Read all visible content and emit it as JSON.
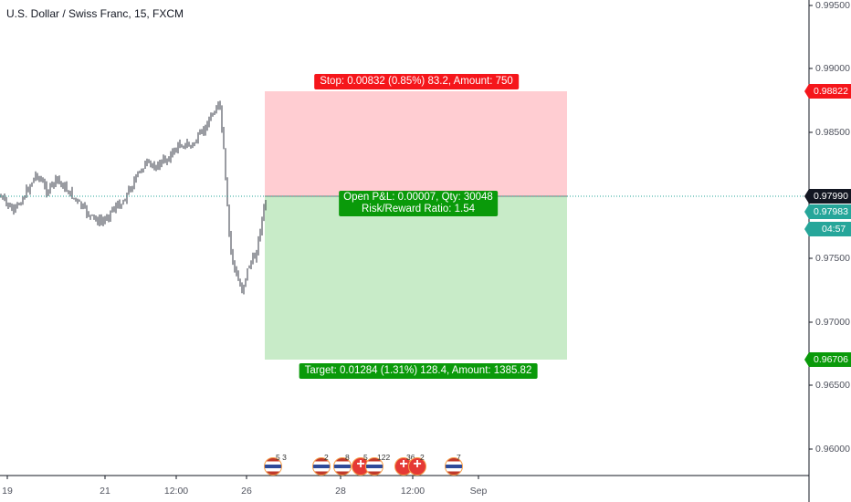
{
  "chart_title": "U.S. Dollar / Swiss Franc, 15, FXCM",
  "price_axis": {
    "labels": [
      "0.99500",
      "0.99000",
      "0.98500",
      "0.98000",
      "0.97500",
      "0.97000",
      "0.96500",
      "0.96000"
    ]
  },
  "time_axis": {
    "labels": [
      "19",
      "21",
      "12:00",
      "26",
      "28",
      "12:00",
      "Sep"
    ]
  },
  "position": {
    "stop_label": "Stop: 0.00832 (0.85%) 83.2, Amount: 750",
    "pnl_line1": "Open P&L: 0.00007, Qty: 30048",
    "pnl_line2": "Risk/Reward Ratio: 1.54",
    "target_label": "Target: 0.01284 (1.31%) 128.4, Amount: 1385.82"
  },
  "price_tags": {
    "stop": "0.98822",
    "current": "0.97990",
    "entry": "0.97983",
    "countdown": "04:57",
    "target": "0.96706"
  },
  "events": [
    {
      "flag": "us",
      "count": "5 3"
    },
    {
      "flag": "us",
      "count": "2"
    },
    {
      "flag": "us",
      "count": "8"
    },
    {
      "flag": "ch",
      "count": "5"
    },
    {
      "flag": "us",
      "count": "122"
    },
    {
      "flag": "ch",
      "count": "36"
    },
    {
      "flag": "ch",
      "count": "2"
    },
    {
      "flag": "us",
      "count": "7"
    }
  ],
  "colors": {
    "stop_zone": "#ffcdd2",
    "target_zone": "#c8ebc8",
    "stop_tag": "#f5161b",
    "target_tag": "#0a9a0a",
    "entry_tag": "#26a69a",
    "candle": "#363a45",
    "price_line": "#26a69a"
  }
}
